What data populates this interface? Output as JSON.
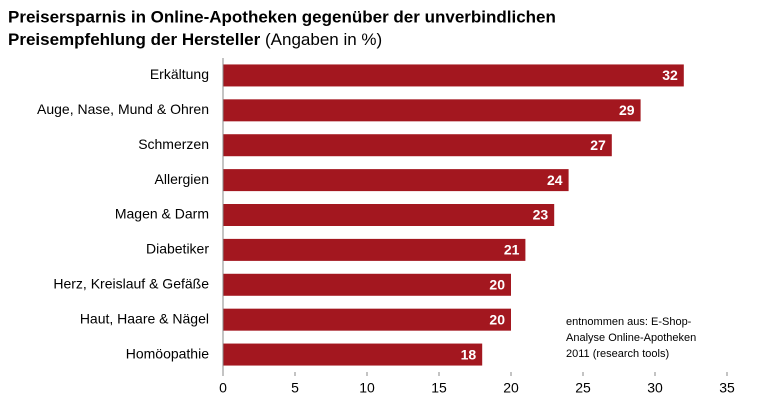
{
  "chart_data": {
    "type": "bar",
    "orientation": "horizontal",
    "title": [
      "Preisersparnis in Online-Apotheken gegenüber der unverbindlichen",
      "Preisempfehlung der Hersteller"
    ],
    "subtitle": "(Angaben in %)",
    "categories": [
      "Erkältung",
      "Auge, Nase, Mund & Ohren",
      "Schmerzen",
      "Allergien",
      "Magen & Darm",
      "Diabetiker",
      "Herz, Kreislauf & Gefäße",
      "Haut, Haare & Nägel",
      "Homöopathie"
    ],
    "values": [
      32,
      29,
      27,
      24,
      23,
      21,
      20,
      20,
      18
    ],
    "color": "#a3171f",
    "xlim": [
      0,
      35
    ],
    "xticks": [
      0,
      5,
      10,
      15,
      20,
      25,
      30,
      35
    ],
    "annotation": [
      "entnommen aus: E-Shop-",
      "Analyse Online-Apotheken",
      "2011 (research tools)"
    ]
  }
}
